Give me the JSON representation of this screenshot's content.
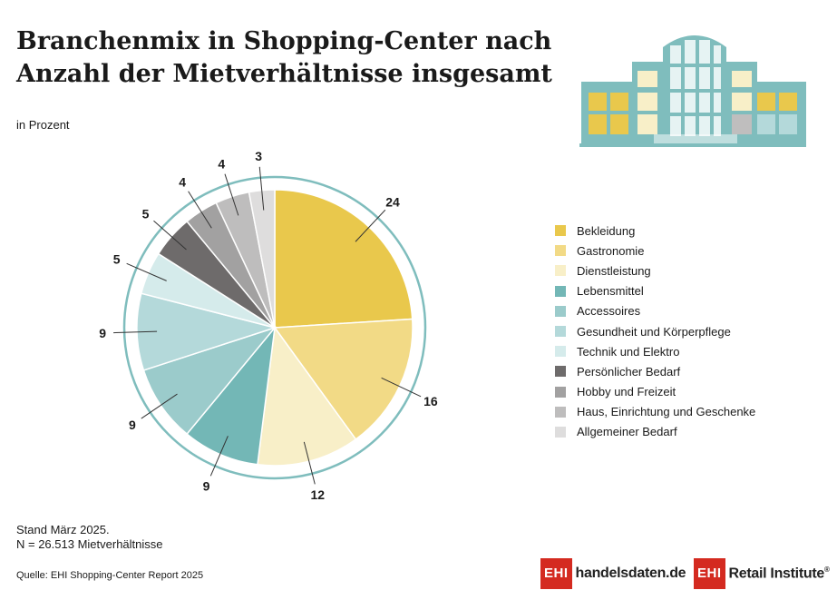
{
  "header": {
    "title": "Branchenmix in Shopping-Center nach Anzahl der Mietverhältnisse insgesamt",
    "subtitle": "in Prozent"
  },
  "chart_data": {
    "type": "pie",
    "title": "Branchenmix in Shopping-Center nach Anzahl der Mietverhältnisse insgesamt",
    "unit": "in Prozent",
    "start_angle_deg": 0,
    "direction": "clockwise",
    "slices": [
      {
        "label": "Bekleidung",
        "value": 24,
        "color": "#e9c84c"
      },
      {
        "label": "Gastronomie",
        "value": 16,
        "color": "#f2da86"
      },
      {
        "label": "Dienstleistung",
        "value": 12,
        "color": "#f8efc8"
      },
      {
        "label": "Lebensmittel",
        "value": 9,
        "color": "#73b7b6"
      },
      {
        "label": "Accessoires",
        "value": 9,
        "color": "#9bcbcb"
      },
      {
        "label": "Gesundheit und Körperpflege",
        "value": 9,
        "color": "#b4d9da"
      },
      {
        "label": "Technik und Elektro",
        "value": 5,
        "color": "#d5ebeb"
      },
      {
        "label": "Persönlicher Bedarf",
        "value": 5,
        "color": "#6e6b6b"
      },
      {
        "label": "Hobby und Freizeit",
        "value": 4,
        "color": "#a2a1a1"
      },
      {
        "label": "Haus, Einrichtung und Geschenke",
        "value": 4,
        "color": "#bebdbd"
      },
      {
        "label": "Allgemeiner Bedarf",
        "value": 3,
        "color": "#dedddd"
      }
    ]
  },
  "notes": {
    "stand": "Stand März 2025.",
    "n": "N = 26.513 Mietverhältnisse",
    "source": "Quelle: EHI Shopping-Center Report 2025"
  },
  "logos": {
    "ehi_mark": "EHI",
    "handelsdaten": "handelsdaten.de",
    "retail": "Retail Institute",
    "registered": "®"
  },
  "colors": {
    "ring": "#7fbdbd",
    "building_teal": "#7fbdbd",
    "building_yellow": "#e9c84c",
    "logo_red": "#d42a20"
  },
  "icons": {
    "header_illustration": "shopping-center-building-icon"
  }
}
